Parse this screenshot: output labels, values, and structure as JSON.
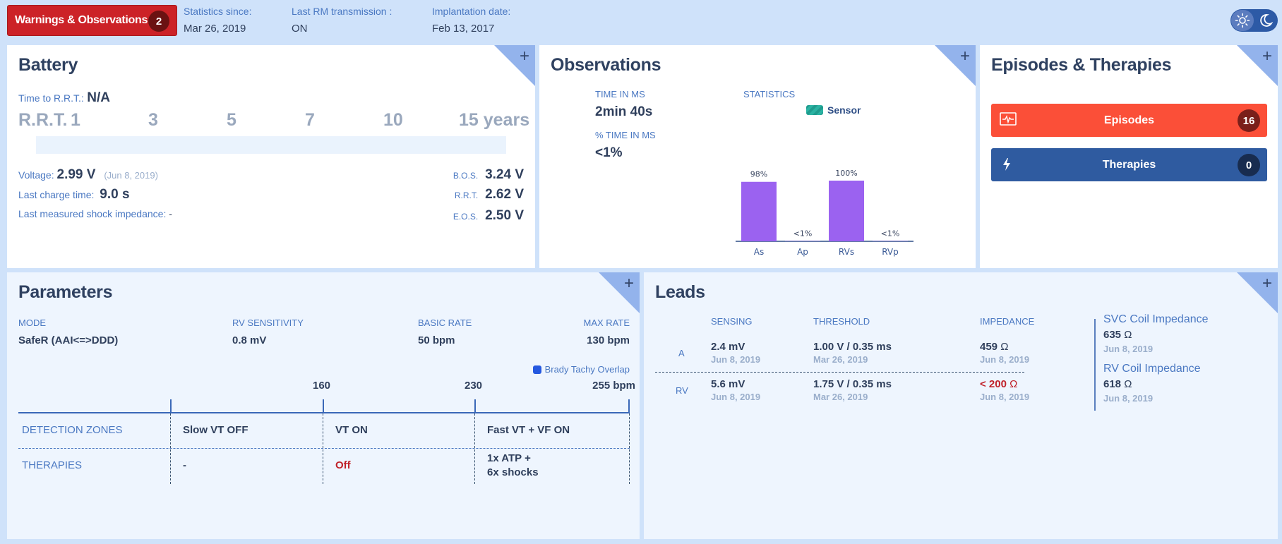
{
  "topbar": {
    "warnings_label": "Warnings & Observations",
    "warnings_count": "2",
    "statistics_since_label": "Statistics since:",
    "statistics_since_value": "Mar 26, 2019",
    "last_rm_label": "Last RM transmission :",
    "last_rm_value": "ON",
    "implantation_label": "Implantation date:",
    "implantation_value": "Feb 13, 2017",
    "theme_toggle": {
      "left_icon": "sun-icon",
      "right_icon": "moon-icon"
    }
  },
  "battery": {
    "title": "Battery",
    "time_to_rrt_label": "Time to R.R.T.:",
    "time_to_rrt_value": "N/A",
    "scale": [
      "R.R.T.",
      "1",
      "3",
      "5",
      "7",
      "10",
      "15 years"
    ],
    "voltage_label": "Voltage:",
    "voltage_value": "2.99 V",
    "voltage_date": "(Jun 8, 2019)",
    "charge_time_label": "Last charge time:",
    "charge_time_value": "9.0 s",
    "shock_impedance_label": "Last measured shock impedance:",
    "shock_impedance_value": "-",
    "bos_label": "B.O.S.",
    "bos_value": "3.24 V",
    "rrt_label": "R.R.T.",
    "rrt_value": "2.62 V",
    "eos_label": "E.O.S.",
    "eos_value": "2.50 V"
  },
  "observations": {
    "title": "Observations",
    "time_in_ms_label": "TIME IN MS",
    "time_in_ms_value": "2min 40s",
    "pct_time_in_ms_label": "% TIME IN MS",
    "pct_time_in_ms_value": "<1%",
    "statistics_label": "STATISTICS"
  },
  "chart_data": {
    "type": "bar",
    "title": "STATISTICS",
    "legend": [
      "Sensor"
    ],
    "legend_placement": "top",
    "categories": [
      "As",
      "Ap",
      "RVs",
      "RVp"
    ],
    "values": [
      98,
      0.5,
      100,
      0.5
    ],
    "data_labels": [
      "98%",
      "<1%",
      "100%",
      "<1%"
    ],
    "ylim": [
      0,
      100
    ],
    "colors": {
      "bar": "#9b62f0",
      "legend": "#1f9c8e"
    }
  },
  "episodes_therapies": {
    "title": "Episodes & Therapies",
    "episodes_label": "Episodes",
    "episodes_count": "16",
    "therapies_label": "Therapies",
    "therapies_count": "0",
    "colors": {
      "episodes": "#fb4f38",
      "therapies": "#2f5ba0"
    }
  },
  "parameters": {
    "title": "Parameters",
    "mode_label": "MODE",
    "mode_value": "SafeR (AAI<=>DDD)",
    "rv_sensitivity_label": "RV SENSITIVITY",
    "rv_sensitivity_value": "0.8 mV",
    "basic_rate_label": "BASIC RATE",
    "basic_rate_value": "50 bpm",
    "max_rate_label": "MAX RATE",
    "max_rate_value": "130 bpm",
    "legend_label": "Brady Tachy Overlap",
    "zone_ticks": [
      "160",
      "230",
      "255 bpm"
    ],
    "detection_zones_label": "DETECTION ZONES",
    "therapies_label": "THERAPIES",
    "zones": [
      {
        "detection": "Slow VT OFF",
        "therapy": "-"
      },
      {
        "detection": "VT ON",
        "therapy": "Off"
      },
      {
        "detection": "Fast VT + VF ON",
        "therapy_line1": "1x ATP  +",
        "therapy_line2": "6x shocks"
      }
    ]
  },
  "leads": {
    "title": "Leads",
    "headers": [
      "SENSING",
      "THRESHOLD",
      "IMPEDANCE"
    ],
    "rows": [
      {
        "name": "A",
        "sensing": "2.4 mV",
        "sensing_date": "Jun 8, 2019",
        "threshold": "1.00 V / 0.35 ms",
        "threshold_date": "Mar 26, 2019",
        "impedance": "459",
        "impedance_unit": "Ω",
        "impedance_date": "Jun 8, 2019"
      },
      {
        "name": "RV",
        "sensing": "5.6 mV",
        "sensing_date": "Jun 8, 2019",
        "threshold": "1.75 V / 0.35 ms",
        "threshold_date": "Mar 26, 2019",
        "impedance": "< 200",
        "impedance_unit": "Ω",
        "impedance_date": "Jun 8, 2019"
      }
    ],
    "svc_label": "SVC Coil Impedance",
    "svc_value": "635",
    "svc_unit": "Ω",
    "svc_date": "Jun 8, 2019",
    "rv_coil_label": "RV Coil Impedance",
    "rv_coil_value": "618",
    "rv_coil_unit": "Ω",
    "rv_coil_date": "Jun 8, 2019"
  }
}
